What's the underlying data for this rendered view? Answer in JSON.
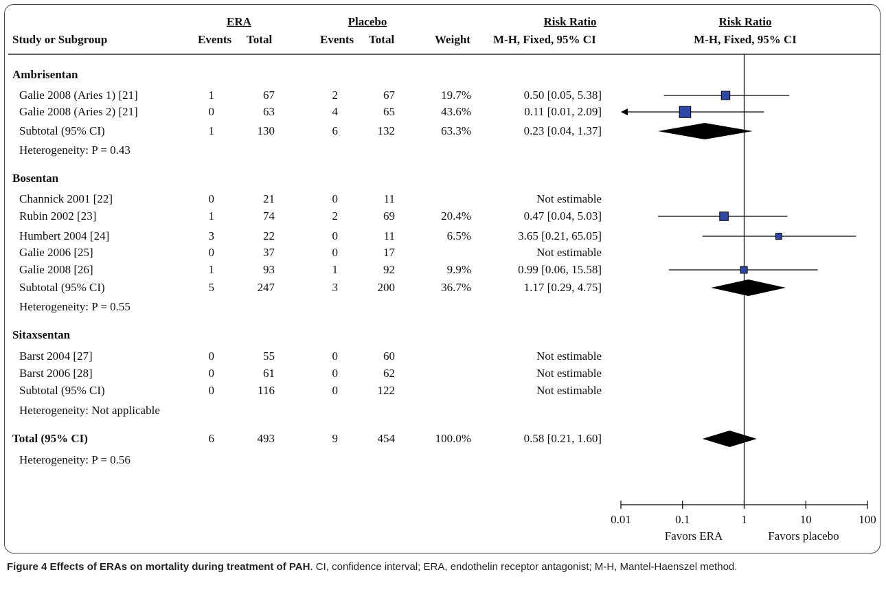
{
  "header": {
    "study_col": "Study or Subgroup",
    "era_group": "ERA",
    "placebo_group": "Placebo",
    "events": "Events",
    "total": "Total",
    "weight": "Weight",
    "rr_text_title": "Risk Ratio",
    "rr_text_method": "M-H, Fixed, 95% CI",
    "rr_plot_title": "Risk Ratio",
    "rr_plot_method": "M-H, Fixed, 95% CI"
  },
  "rows": [
    {
      "kind": "group",
      "label": "Ambrisentan"
    },
    {
      "kind": "study",
      "label": "Galie 2008 (Aries 1) [21]",
      "era_events": "1",
      "era_total": "67",
      "pl_events": "2",
      "pl_total": "67",
      "weight": "19.7%",
      "rr_text": "0.50 [0.05, 5.38]"
    },
    {
      "kind": "study",
      "label": "Galie 2008 (Aries 2) [21]",
      "era_events": "0",
      "era_total": "63",
      "pl_events": "4",
      "pl_total": "65",
      "weight": "43.6%",
      "rr_text": "0.11 [0.01, 2.09]"
    },
    {
      "kind": "subtotal",
      "label": "Subtotal (95% CI)",
      "era_events": "1",
      "era_total": "130",
      "pl_events": "6",
      "pl_total": "132",
      "weight": "63.3%",
      "rr_text": "0.23 [0.04, 1.37]"
    },
    {
      "kind": "het",
      "label": "Heterogeneity: P = 0.43"
    },
    {
      "kind": "group",
      "label": "Bosentan"
    },
    {
      "kind": "study",
      "label": "Channick 2001 [22]",
      "era_events": "0",
      "era_total": "21",
      "pl_events": "0",
      "pl_total": "11",
      "weight": "",
      "rr_text": "Not estimable"
    },
    {
      "kind": "study",
      "label": "Rubin 2002 [23]",
      "era_events": "1",
      "era_total": "74",
      "pl_events": "2",
      "pl_total": "69",
      "weight": "20.4%",
      "rr_text": "0.47 [0.04, 5.03]"
    },
    {
      "kind": "study",
      "label": "Humbert 2004 [24]",
      "era_events": "3",
      "era_total": "22",
      "pl_events": "0",
      "pl_total": "11",
      "weight": "6.5%",
      "rr_text": "3.65 [0.21, 65.05]"
    },
    {
      "kind": "study",
      "label": "Galie 2006 [25]",
      "era_events": "0",
      "era_total": "37",
      "pl_events": "0",
      "pl_total": "17",
      "weight": "",
      "rr_text": "Not estimable"
    },
    {
      "kind": "study",
      "label": "Galie 2008 [26]",
      "era_events": "1",
      "era_total": "93",
      "pl_events": "1",
      "pl_total": "92",
      "weight": "9.9%",
      "rr_text": "0.99 [0.06, 15.58]"
    },
    {
      "kind": "subtotal",
      "label": "Subtotal (95% CI)",
      "era_events": "5",
      "era_total": "247",
      "pl_events": "3",
      "pl_total": "200",
      "weight": "36.7%",
      "rr_text": "1.17 [0.29, 4.75]"
    },
    {
      "kind": "het",
      "label": "Heterogeneity: P = 0.55"
    },
    {
      "kind": "group",
      "label": "Sitaxsentan"
    },
    {
      "kind": "study",
      "label": "Barst 2004 [27]",
      "era_events": "0",
      "era_total": "55",
      "pl_events": "0",
      "pl_total": "60",
      "weight": "",
      "rr_text": "Not estimable"
    },
    {
      "kind": "study",
      "label": "Barst 2006 [28]",
      "era_events": "0",
      "era_total": "61",
      "pl_events": "0",
      "pl_total": "62",
      "weight": "",
      "rr_text": "Not estimable"
    },
    {
      "kind": "subtotal",
      "label": "Subtotal (95% CI)",
      "era_events": "0",
      "era_total": "116",
      "pl_events": "0",
      "pl_total": "122",
      "weight": "",
      "rr_text": "Not estimable"
    },
    {
      "kind": "het",
      "label": "Heterogeneity: Not applicable"
    },
    {
      "kind": "total",
      "label": "Total (95% CI)",
      "era_events": "6",
      "era_total": "493",
      "pl_events": "9",
      "pl_total": "454",
      "weight": "100.0%",
      "rr_text": "0.58 [0.21, 1.60]"
    },
    {
      "kind": "het",
      "label": "Heterogeneity: P = 0.56"
    }
  ],
  "chart_data": {
    "type": "forest",
    "scale": "log",
    "xlim": [
      0.01,
      100
    ],
    "ticks": [
      0.01,
      0.1,
      1,
      10,
      100
    ],
    "tick_labels": [
      "0.01",
      "0.1",
      "1",
      "10",
      "100"
    ],
    "null_value": 1,
    "favors_left": "Favors ERA",
    "favors_right": "Favors placebo",
    "series": [
      {
        "row": 1,
        "shape": "square",
        "rr": 0.5,
        "lo": 0.05,
        "hi": 5.38,
        "weight": 19.7
      },
      {
        "row": 2,
        "shape": "square",
        "rr": 0.11,
        "lo": 0.01,
        "hi": 2.09,
        "weight": 43.6,
        "lo_arrow": true
      },
      {
        "row": 3,
        "shape": "diamond",
        "rr": 0.23,
        "lo": 0.04,
        "hi": 1.37
      },
      {
        "row": 7,
        "shape": "square",
        "rr": 0.47,
        "lo": 0.04,
        "hi": 5.03,
        "weight": 20.4
      },
      {
        "row": 8,
        "shape": "square",
        "rr": 3.65,
        "lo": 0.21,
        "hi": 65.05,
        "weight": 6.5
      },
      {
        "row": 10,
        "shape": "square",
        "rr": 0.99,
        "lo": 0.06,
        "hi": 15.58,
        "weight": 9.9
      },
      {
        "row": 11,
        "shape": "diamond",
        "rr": 1.17,
        "lo": 0.29,
        "hi": 4.75
      },
      {
        "row": 18,
        "shape": "diamond",
        "rr": 0.58,
        "lo": 0.21,
        "hi": 1.6
      }
    ],
    "colors": {
      "marker": "#2f48a6",
      "line": "#000000"
    }
  },
  "caption": {
    "label": "Figure 4 Effects of ERAs on mortality during treatment of PAH",
    "text": ". CI, confidence interval; ERA, endothelin receptor antagonist; M-H, Mantel-Haenszel method."
  }
}
